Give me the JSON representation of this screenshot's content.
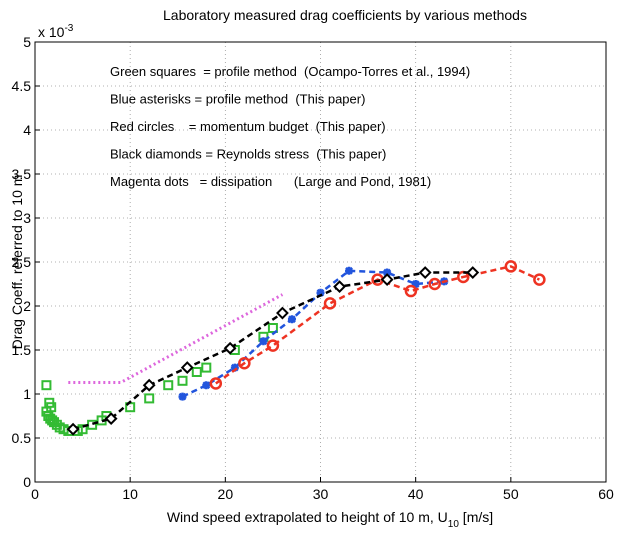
{
  "chart_data": {
    "type": "line",
    "title": "Laboratory measured drag coefficients by various methods",
    "xlabel": {
      "main": "Wind speed extrapolated to height of 10 m, U",
      "subscript": "10",
      "unit": " [m/s]"
    },
    "ylabel": "Drag Coeff. referred to 10 m",
    "y_multiplier": {
      "base": "x 10",
      "exponent": "-3"
    },
    "xlim": [
      0,
      60
    ],
    "ylim": [
      0,
      5
    ],
    "xticks": [
      0,
      10,
      20,
      30,
      40,
      50,
      60
    ],
    "yticks": [
      0,
      0.5,
      1,
      1.5,
      2,
      2.5,
      3,
      3.5,
      4,
      4.5,
      5
    ],
    "grid": true,
    "annotations": [
      "Green squares  = profile method  (Ocampo-Torres et al., 1994)",
      "Blue asterisks = profile method  (This paper)",
      "Red circles    = momentum budget  (This paper)",
      "Black diamonds = Reynolds stress  (This paper)",
      "Magenta dots   = dissipation      (Large and Pond, 1981)"
    ],
    "series": [
      {
        "color": "#33bb33",
        "marker": "square",
        "line": "none",
        "x": [
          1.2,
          1.5,
          1.7,
          1.2,
          1.4,
          1.6,
          1.8,
          2,
          2.3,
          2.6,
          3,
          3.5,
          4.5,
          5,
          6,
          7,
          7.5,
          10,
          12,
          14,
          15.5,
          17,
          18,
          21,
          24,
          25
        ],
        "values": [
          1.1,
          0.9,
          0.85,
          0.8,
          0.75,
          0.72,
          0.7,
          0.68,
          0.65,
          0.62,
          0.6,
          0.58,
          0.58,
          0.6,
          0.65,
          0.7,
          0.75,
          0.85,
          0.95,
          1.1,
          1.15,
          1.25,
          1.3,
          1.5,
          1.65,
          1.75
        ]
      },
      {
        "color": "#2255dd",
        "marker": "asterisk",
        "line": "dashed",
        "x": [
          15.5,
          18,
          21,
          24,
          27,
          30,
          33,
          37,
          40,
          43
        ],
        "values": [
          0.97,
          1.1,
          1.3,
          1.6,
          1.85,
          2.15,
          2.4,
          2.38,
          2.25,
          2.28
        ]
      },
      {
        "color": "#ee3322",
        "marker": "circle",
        "line": "dashed",
        "x": [
          19,
          22,
          25,
          31,
          36,
          39.5,
          42,
          45,
          50,
          53
        ],
        "values": [
          1.12,
          1.35,
          1.55,
          2.03,
          2.3,
          2.17,
          2.25,
          2.33,
          2.45,
          2.3
        ]
      },
      {
        "color": "#000000",
        "marker": "diamond",
        "line": "dashed",
        "x": [
          4,
          8,
          12,
          16,
          20.5,
          26,
          32,
          37,
          41,
          46
        ],
        "values": [
          0.6,
          0.72,
          1.1,
          1.3,
          1.52,
          1.92,
          2.22,
          2.3,
          2.38,
          2.38
        ]
      },
      {
        "color": "#dd66dd",
        "marker": "none",
        "line": "dotted",
        "x": [
          3.5,
          9,
          26
        ],
        "values": [
          1.13,
          1.13,
          2.13
        ]
      }
    ]
  }
}
